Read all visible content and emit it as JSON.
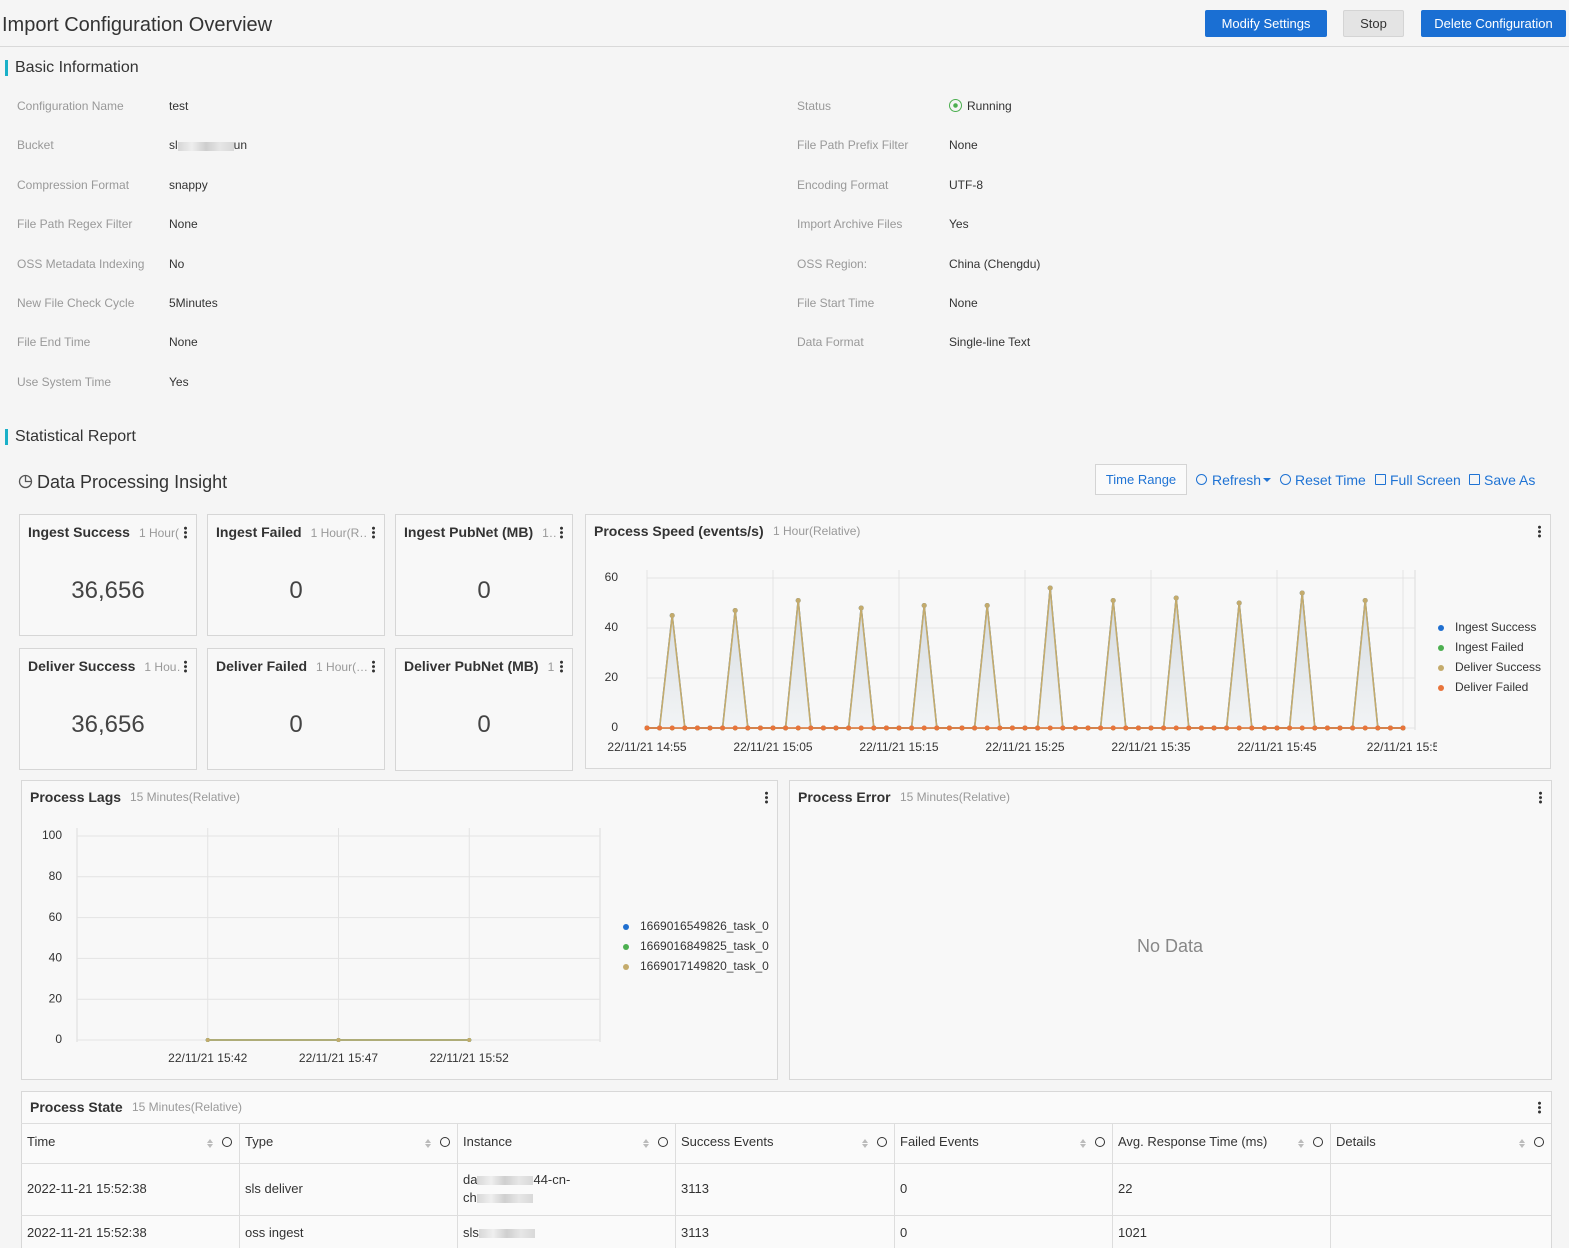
{
  "header": {
    "title": "Import Configuration Overview",
    "actions": [
      "Modify Settings",
      "Stop",
      "Delete Configuration"
    ]
  },
  "basic_information": {
    "title": "Basic Information",
    "left": [
      {
        "label": "Configuration Name",
        "value": "test"
      },
      {
        "label": "Bucket",
        "value": [
          "sl",
          "un"
        ]
      },
      {
        "label": "Compression Format",
        "value": "snappy"
      },
      {
        "label": "File Path Regex Filter",
        "value": "None"
      },
      {
        "label": "OSS Metadata Indexing",
        "value": "No"
      },
      {
        "label": "New File Check Cycle",
        "value": "5Minutes"
      },
      {
        "label": "File End Time",
        "value": "None"
      },
      {
        "label": "Use System Time",
        "value": "Yes"
      }
    ],
    "right": [
      {
        "label": "Status",
        "value": "Running"
      },
      {
        "label": "File Path Prefix Filter",
        "value": "None"
      },
      {
        "label": "Encoding Format",
        "value": "UTF-8"
      },
      {
        "label": "Import Archive Files",
        "value": "Yes"
      },
      {
        "label": "OSS Region:",
        "value": "China (Chengdu)"
      },
      {
        "label": "File Start Time",
        "value": "None"
      },
      {
        "label": "Data Format",
        "value": "Single-line Text"
      }
    ]
  },
  "statistical_report": {
    "title": "Statistical Report",
    "dashboard": {
      "title": "Data Processing Insight",
      "toolbar": [
        "Time Range",
        "Refresh",
        "Reset Time",
        "Full Screen",
        "Save As"
      ],
      "cards": [
        {
          "title": "Ingest Success",
          "subtitle": "1 Hour(…",
          "value": "36,656"
        },
        {
          "title": "Ingest Failed",
          "subtitle": "1 Hour(R…",
          "value": "0"
        },
        {
          "title": "Ingest PubNet (MB)",
          "subtitle": "1…",
          "value": "0"
        },
        {
          "title": "Deliver Success",
          "subtitle": "1 Hou…",
          "value": "36,656"
        },
        {
          "title": "Deliver Failed",
          "subtitle": "1 Hour(…",
          "value": "0"
        },
        {
          "title": "Deliver PubNet (MB)",
          "subtitle": "1",
          "value": "0"
        }
      ]
    }
  },
  "chart_data": [
    {
      "type": "line",
      "title": "Process Speed (events/s)",
      "subtitle": "1 Hour(Relative)",
      "categories": [
        "22/11/21 14:55",
        null,
        null,
        null,
        null,
        null,
        null,
        null,
        null,
        null,
        "22/11/21 15:05",
        null,
        null,
        null,
        null,
        null,
        null,
        null,
        null,
        null,
        "22/11/21 15:15",
        null,
        null,
        null,
        null,
        null,
        null,
        null,
        null,
        null,
        "22/11/21 15:25",
        null,
        null,
        null,
        null,
        null,
        null,
        null,
        null,
        null,
        "22/11/21 15:35",
        null,
        null,
        null,
        null,
        null,
        null,
        null,
        null,
        null,
        "22/11/21 15:45",
        null,
        null,
        null,
        null,
        null,
        null,
        null,
        null,
        null,
        "22/11/21 15:5"
      ],
      "series": [
        {
          "name": "Ingest Success",
          "color": "#1f6fd0",
          "values": [
            0,
            0,
            45,
            0,
            0,
            0,
            0,
            47,
            0,
            0,
            0,
            0,
            51,
            0,
            0,
            0,
            0,
            48,
            0,
            0,
            0,
            0,
            49,
            0,
            0,
            0,
            0,
            49,
            0,
            0,
            0,
            0,
            56,
            0,
            0,
            0,
            0,
            51,
            0,
            0,
            0,
            0,
            52,
            0,
            0,
            0,
            0,
            50,
            0,
            0,
            0,
            0,
            54,
            0,
            0,
            0,
            0,
            51,
            0,
            0,
            0
          ]
        },
        {
          "name": "Ingest Failed",
          "color": "#4caf50",
          "values": [
            0,
            0,
            0,
            0,
            0,
            0,
            0,
            0,
            0,
            0,
            0,
            0,
            0,
            0,
            0,
            0,
            0,
            0,
            0,
            0,
            0,
            0,
            0,
            0,
            0,
            0,
            0,
            0,
            0,
            0,
            0,
            0,
            0,
            0,
            0,
            0,
            0,
            0,
            0,
            0,
            0,
            0,
            0,
            0,
            0,
            0,
            0,
            0,
            0,
            0,
            0,
            0,
            0,
            0,
            0,
            0,
            0,
            0,
            0,
            0,
            0
          ]
        },
        {
          "name": "Deliver Success",
          "color": "#c4ab6c",
          "area": true,
          "values": [
            0,
            0,
            45,
            0,
            0,
            0,
            0,
            47,
            0,
            0,
            0,
            0,
            51,
            0,
            0,
            0,
            0,
            48,
            0,
            0,
            0,
            0,
            49,
            0,
            0,
            0,
            0,
            49,
            0,
            0,
            0,
            0,
            56,
            0,
            0,
            0,
            0,
            51,
            0,
            0,
            0,
            0,
            52,
            0,
            0,
            0,
            0,
            50,
            0,
            0,
            0,
            0,
            54,
            0,
            0,
            0,
            0,
            51,
            0,
            0,
            0
          ]
        },
        {
          "name": "Deliver Failed",
          "color": "#e8743b",
          "values": [
            0,
            0,
            0,
            0,
            0,
            0,
            0,
            0,
            0,
            0,
            0,
            0,
            0,
            0,
            0,
            0,
            0,
            0,
            0,
            0,
            0,
            0,
            0,
            0,
            0,
            0,
            0,
            0,
            0,
            0,
            0,
            0,
            0,
            0,
            0,
            0,
            0,
            0,
            0,
            0,
            0,
            0,
            0,
            0,
            0,
            0,
            0,
            0,
            0,
            0,
            0,
            0,
            0,
            0,
            0,
            0,
            0,
            0,
            0,
            0,
            0
          ]
        }
      ],
      "ylim": [
        0,
        60
      ],
      "yticks": [
        0,
        20,
        40,
        60
      ],
      "grid": true,
      "legend": "right"
    },
    {
      "type": "line",
      "title": "Process Lags",
      "subtitle": "15 Minutes(Relative)",
      "categories": [
        null,
        "22/11/21 15:42",
        "22/11/21 15:47",
        "22/11/21 15:52",
        null
      ],
      "series": [
        {
          "name": "1669016549826_task_0",
          "color": "#1f6fd0",
          "values": [
            null,
            0,
            0,
            0,
            null
          ]
        },
        {
          "name": "1669016849825_task_0",
          "color": "#4caf50",
          "values": [
            null,
            0,
            0,
            0,
            null
          ]
        },
        {
          "name": "1669017149820_task_0",
          "color": "#c4ab6c",
          "values": [
            null,
            0,
            0,
            0,
            null
          ]
        }
      ],
      "ylim": [
        0,
        100
      ],
      "yticks": [
        0,
        20,
        40,
        60,
        80,
        100
      ],
      "grid": true,
      "legend": "right"
    }
  ],
  "process_error": {
    "title": "Process Error",
    "subtitle": "15 Minutes(Relative)",
    "message": "No Data"
  },
  "process_state": {
    "title": "Process State",
    "subtitle": "15 Minutes(Relative)",
    "columns": [
      "Time",
      "Type",
      "Instance",
      "Success Events",
      "Failed Events",
      "Avg. Response Time (ms)",
      "Details"
    ],
    "rows": [
      [
        "2022-11-21 15:52:38",
        "sls deliver",
        [
          "da",
          "44-cn-",
          "ch"
        ],
        "3113",
        "0",
        "22"
      ],
      [
        "2022-11-21 15:52:38",
        "oss ingest",
        [
          "sls"
        ],
        "3113",
        "0",
        "1021"
      ]
    ]
  }
}
